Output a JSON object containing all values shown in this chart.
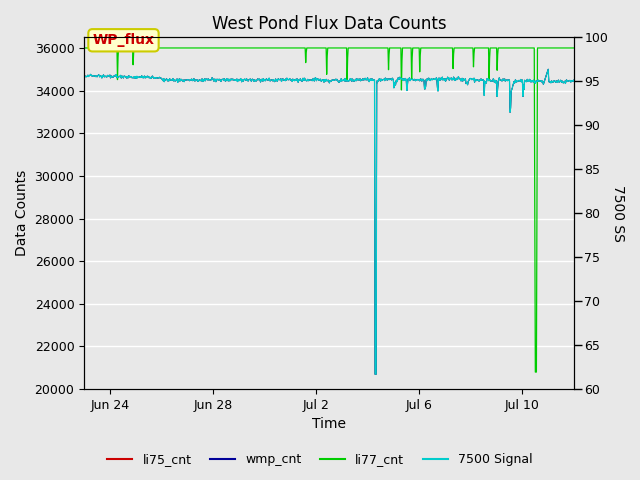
{
  "title": "West Pond Flux Data Counts",
  "ylabel_left": "Data Counts",
  "ylabel_right": "7500 SS",
  "xlabel": "Time",
  "ylim_left": [
    20000,
    36500
  ],
  "ylim_right": [
    60,
    100
  ],
  "yticks_left": [
    20000,
    22000,
    24000,
    26000,
    28000,
    30000,
    32000,
    34000,
    36000
  ],
  "yticks_right": [
    60,
    65,
    70,
    75,
    80,
    85,
    90,
    95,
    100
  ],
  "xtick_labels": [
    "Jun 24",
    "Jun 28",
    "Jul 2",
    "Jul 6",
    "Jul 10"
  ],
  "xtick_positions_days": [
    1,
    5,
    9,
    13,
    17
  ],
  "xlim": [
    0,
    19
  ],
  "fig_facecolor": "#e8e8e8",
  "axes_facecolor": "#e8e8e8",
  "grid_color": "#ffffff",
  "li77_base": 36000,
  "signal_base": 34500,
  "signal_noise": 80,
  "signal_dip_day": 11.3,
  "signal_dip_min": 20700,
  "li77_big_dip_day": 17.5,
  "li77_big_dip_min": 20800,
  "wp_flux_facecolor": "#ffffcc",
  "wp_flux_edgecolor": "#cccc00",
  "wp_flux_textcolor": "#cc0000",
  "wp_flux_text": "WP_flux",
  "legend_labels": [
    "li75_cnt",
    "wmp_cnt",
    "li77_cnt",
    "7500 Signal"
  ],
  "legend_colors": [
    "#cc0000",
    "#000099",
    "#00cc00",
    "#00cccc"
  ],
  "title_fontsize": 12,
  "axis_label_fontsize": 10,
  "tick_fontsize": 9,
  "legend_fontsize": 9
}
